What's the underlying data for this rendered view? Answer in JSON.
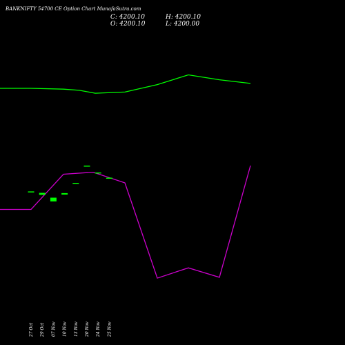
{
  "chart_data": {
    "type": "candlestick",
    "title": "BANKNIFTY 54700  CE Option  Chart MunafaSutra.com",
    "ohlc": {
      "close": "C: 4200.10",
      "high": "H: 4200.10",
      "open": "O: 4200.10",
      "low": "L: 4200.00"
    },
    "categories": [
      "27 Oct",
      "29 Oct",
      "07 Nov",
      "10 Nov",
      "13 Nov",
      "20 Nov",
      "24 Nov",
      "25 Nov"
    ],
    "candles": [
      {
        "date": "27 Oct",
        "open": 4200.1,
        "close": 4200.1
      },
      {
        "date": "29 Oct",
        "open": 4175,
        "close": 4140
      },
      {
        "date": "07 Nov",
        "open": 4090,
        "close": 4025
      },
      {
        "date": "10 Nov",
        "open": 4145,
        "close": 4170
      },
      {
        "date": "13 Nov",
        "open": 4350,
        "close": 4350
      },
      {
        "date": "20 Nov",
        "open": 4650,
        "close": 4650
      },
      {
        "date": "24 Nov",
        "open": 4530,
        "close": 4530
      },
      {
        "date": "25 Nov",
        "open": 4440,
        "close": 4440
      }
    ],
    "y_domain": [
      2000,
      7000
    ],
    "overlays": [
      {
        "color": "#00ff00",
        "values": [
          0.8,
          0.8,
          0.797,
          0.793,
          0.783,
          0.787,
          0.813,
          0.847,
          0.83,
          0.817
        ]
      },
      {
        "color": "#cc00cc",
        "values": [
          0.377,
          0.377,
          0.5,
          0.507,
          0.47,
          0.137,
          0.173,
          0.14,
          0.53
        ]
      }
    ],
    "colors": {
      "background": "#000000",
      "candle": "#00ff00",
      "text": "#ffffff"
    }
  }
}
